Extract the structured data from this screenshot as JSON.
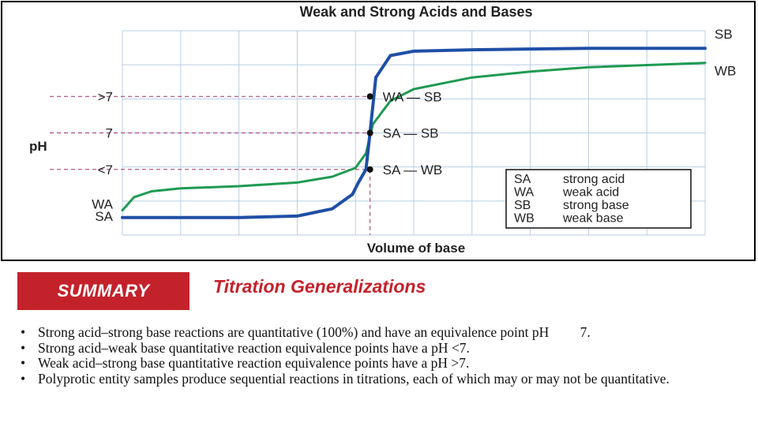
{
  "chart_data": {
    "type": "line",
    "title": "Weak and Strong Acids and Bases",
    "xlabel": "Volume of base",
    "ylabel": "pH",
    "xlim": [
      0,
      100
    ],
    "ylim": [
      0,
      14
    ],
    "grid": true,
    "y_tick_labels": [
      ">7",
      "7",
      "<7"
    ],
    "y_tick_values": [
      9.5,
      7,
      4.5
    ],
    "start_labels": [
      "WA",
      "SA"
    ],
    "series": [
      {
        "name": "SB",
        "color": "#1f4fa6",
        "x": [
          0,
          10,
          20,
          30,
          36,
          39.5,
          40.5,
          41.8,
          42.5,
          43.5,
          46,
          50,
          60,
          70,
          80,
          100
        ],
        "y": [
          1.2,
          1.2,
          1.2,
          1.3,
          1.8,
          2.8,
          3.6,
          4.5,
          7,
          10.8,
          12.3,
          12.6,
          12.7,
          12.75,
          12.8,
          12.8
        ]
      },
      {
        "name": "WB",
        "color": "#1f9a52",
        "x": [
          0,
          2,
          5,
          10,
          20,
          30,
          36,
          40,
          41.8,
          43,
          46,
          50,
          60,
          70,
          80,
          100
        ],
        "y": [
          1.7,
          2.6,
          3.0,
          3.2,
          3.35,
          3.6,
          4.0,
          4.6,
          5.6,
          7.6,
          9.2,
          10.0,
          10.8,
          11.2,
          11.5,
          11.8
        ]
      }
    ],
    "equivalence_points": [
      {
        "label": "WA — SB",
        "x": 42.5,
        "y": 9.5
      },
      {
        "label": "SA — SB",
        "x": 42.5,
        "y": 7
      },
      {
        "label": "SA — WB",
        "x": 42.5,
        "y": 4.5
      }
    ],
    "legend": [
      {
        "abbr": "SA",
        "text": "strong acid"
      },
      {
        "abbr": "WA",
        "text": "weak acid"
      },
      {
        "abbr": "SB",
        "text": "strong base"
      },
      {
        "abbr": "WB",
        "text": "weak base"
      }
    ],
    "legend_position": "bottom-right"
  },
  "summary": {
    "badge": "SUMMARY",
    "title": "Titration Generalizations",
    "bullet_char": "•",
    "bullets": [
      "Strong acid–strong base reactions are quantitative (100%) and have an equivalence point pH   7.",
      "Strong acid–weak base quantitative reaction equivalence points have a pH <7.",
      "Weak acid–strong base quantitative reaction equivalence points have a pH >7.",
      "Polyprotic entity samples produce sequential reactions in titrations, each of which may or may not be quantitative."
    ]
  }
}
